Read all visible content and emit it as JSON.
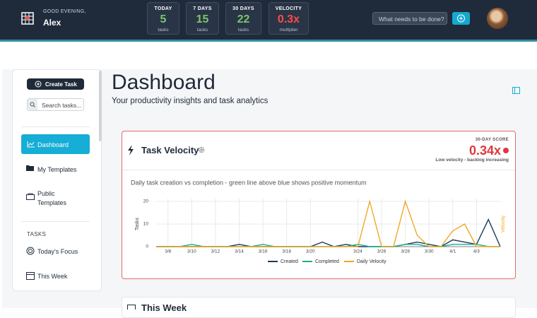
{
  "header": {
    "greeting": "GOOD EVENING,",
    "user": "Alex",
    "stats": [
      {
        "label": "TODAY",
        "value": 5,
        "unit": "tasks"
      },
      {
        "label": "7 DAYS",
        "value": 15,
        "unit": "tasks"
      },
      {
        "label": "30 DAYS",
        "value": 22,
        "unit": "tasks"
      },
      {
        "label": "VELOCITY",
        "value": "0.3x",
        "unit": "multiplier"
      }
    ],
    "input_placeholder": "What needs to be done?"
  },
  "sidebar": {
    "create_button": "Create Task",
    "search_placeholder": "Search tasks...",
    "nav": [
      "Dashboard",
      "My Templates",
      "Public Templates"
    ],
    "section": "TASKS",
    "tasks_nav": [
      "Today's Focus",
      "This Week"
    ]
  },
  "main": {
    "title": "Dashboard",
    "subtitle": "Your productivity insights and task analytics",
    "card": {
      "title": "Task Velocity",
      "score_label": "30-DAY SCORE",
      "score": "0.34x",
      "score_note": "Low velocity - backlog increasing"
    },
    "next_card_title": "This Week"
  },
  "chart_data": {
    "type": "line",
    "subtitle": "Daily task creation vs completion - green line above blue shows positive momentum",
    "y_label": "Tasks",
    "y2_label": "Velocity",
    "categories": [
      null,
      "3/8",
      null,
      "3/10",
      null,
      "3/12",
      null,
      "3/14",
      null,
      "3/16",
      null,
      "3/18",
      null,
      "3/20",
      null,
      null,
      null,
      "3/24",
      null,
      "3/26",
      null,
      "3/28",
      null,
      "3/30",
      null,
      "4/1",
      null,
      "4/3",
      null,
      null
    ],
    "series": [
      {
        "name": "Created",
        "color": "#1b3a5c",
        "values": [
          0,
          0,
          0,
          0,
          0,
          0,
          0,
          1,
          0,
          0,
          0,
          0,
          0,
          0,
          2,
          0,
          1,
          0,
          0,
          0,
          0,
          1,
          2,
          1,
          0,
          3,
          2,
          1,
          12,
          0
        ]
      },
      {
        "name": "Completed",
        "color": "#1fae8c",
        "values": [
          0,
          0,
          0,
          1,
          0,
          0,
          0,
          0,
          0,
          1,
          0,
          0,
          0,
          0,
          0,
          0,
          0,
          1,
          0,
          0,
          0,
          1,
          1,
          0,
          0,
          1,
          1,
          1,
          0,
          0
        ]
      },
      {
        "name": "Daily Velocity",
        "color": "#f0a825",
        "values": [
          0,
          0,
          0,
          0,
          0,
          0,
          0,
          0,
          0,
          0,
          0,
          0,
          0,
          0,
          0,
          0,
          0,
          0,
          20,
          0,
          0,
          20,
          5,
          0,
          0,
          7,
          10,
          0,
          0,
          0
        ]
      }
    ],
    "ylim": [
      0,
      20
    ],
    "yticks": [
      0,
      10,
      20
    ],
    "grid": true
  }
}
